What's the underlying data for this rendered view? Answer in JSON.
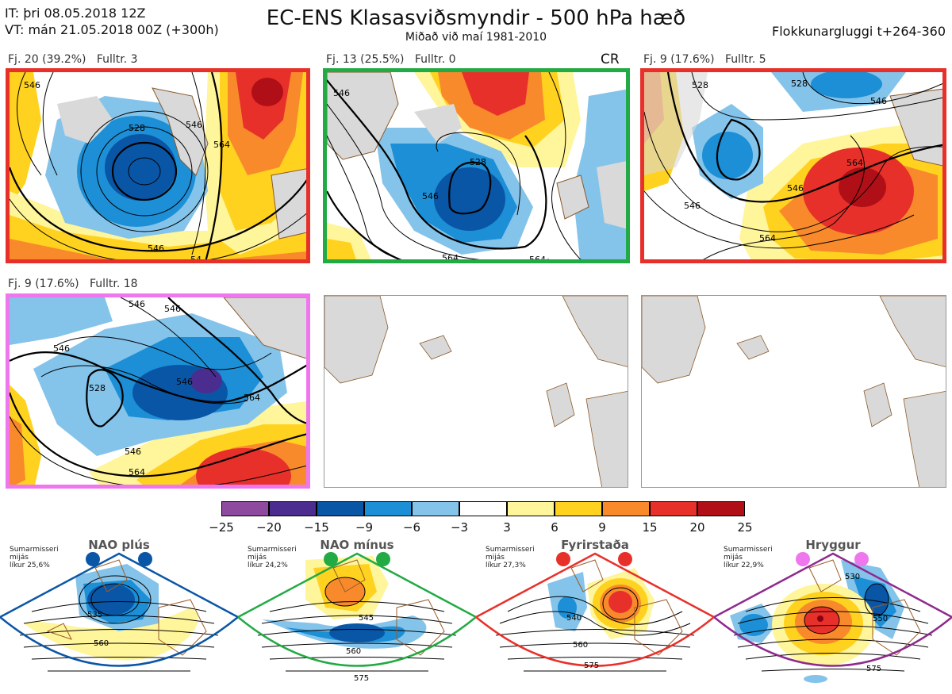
{
  "header": {
    "it": "IT: þri 08.05.2018 12Z",
    "vt": "VT: mán 21.05.2018 00Z  (+300h)",
    "title": "EC-ENS Klasasviðsmyndir - 500 hPa hæð",
    "subtitle": "Miðað við maí 1981-2010",
    "window": "Flokkunargluggi t+264-360"
  },
  "panels": [
    {
      "label": "Fj. 20 (39.2%)   Fulltr. 3",
      "border_color": "#e8302a",
      "contours": [
        "546",
        "528",
        "546",
        "564",
        "546",
        "54"
      ]
    },
    {
      "label": "Fj. 13 (25.5%)   Fulltr. 0",
      "border_color": "#22aa44",
      "tag": "CR",
      "contours": [
        "546",
        "528",
        "546",
        "564",
        "564"
      ]
    },
    {
      "label": "Fj. 9 (17.6%)   Fulltr. 5",
      "border_color": "#e8302a",
      "contours": [
        "528",
        "546",
        "528",
        "564",
        "546",
        "546",
        "564"
      ]
    },
    {
      "label": "Fj. 9 (17.6%)   Fulltr. 18",
      "border_color": "#ee77ee",
      "contours": [
        "546",
        "546",
        "528",
        "546",
        "546",
        "564",
        "546",
        "564"
      ]
    },
    {
      "label": "",
      "border_color": "#999999"
    },
    {
      "label": "",
      "border_color": "#999999"
    }
  ],
  "colorbar": {
    "ticks": [
      "−25",
      "−20",
      "−15",
      "−9",
      "−6",
      "−3",
      "3",
      "6",
      "9",
      "15",
      "20",
      "25"
    ],
    "colors": [
      "#8e4a9e",
      "#4a2d8f",
      "#0a56a6",
      "#1c8fd6",
      "#84c3ea",
      "#ffffff",
      "#fff59a",
      "#ffd21f",
      "#f88a2b",
      "#e8302a",
      "#b00f17"
    ]
  },
  "regimes": [
    {
      "title": "NAO plús",
      "info": [
        "Sumarmisseri",
        "mijás",
        "líkur 25,6%"
      ],
      "color": "#0a56a6",
      "contours": [
        "535",
        "560"
      ]
    },
    {
      "title": "NAO mínus",
      "info": [
        "Sumarmisseri",
        "mijás",
        "líkur 24,2%"
      ],
      "color": "#22aa44",
      "contours": [
        "545",
        "560",
        "575"
      ]
    },
    {
      "title": "Fyrirstaða",
      "info": [
        "Sumarmisseri",
        "mijás",
        "líkur 27,3%"
      ],
      "color": "#e8302a",
      "contours": [
        "540",
        "560",
        "575"
      ]
    },
    {
      "title": "Hryggur",
      "info": [
        "Sumarmisseri",
        "mijás",
        "líkur 22,9%"
      ],
      "color": "#8e2a8e",
      "contours": [
        "530",
        "550",
        "575"
      ]
    }
  ]
}
